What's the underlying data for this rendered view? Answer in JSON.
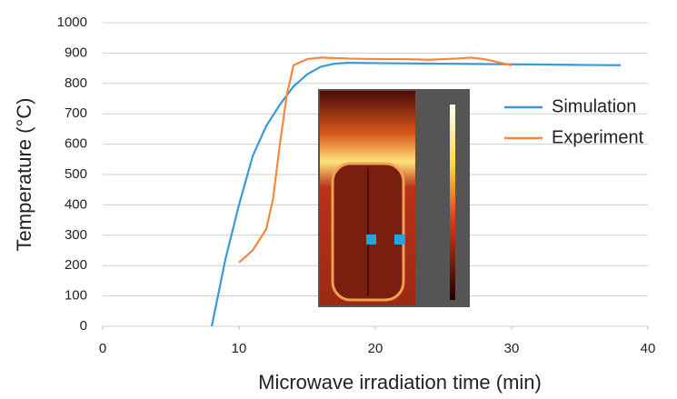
{
  "chart_data": {
    "type": "line",
    "x_label": "Microwave irradiation time (min)",
    "y_label": "Temperature (°C)",
    "xlim": [
      0,
      40
    ],
    "xticks": [
      0,
      10,
      20,
      30,
      40
    ],
    "ylim": [
      0,
      1000
    ],
    "yticks": [
      0,
      100,
      200,
      300,
      400,
      500,
      600,
      700,
      800,
      900,
      1000
    ],
    "grid": true,
    "legend": "right",
    "series": [
      {
        "name": "Simulation",
        "color": "#3a9ad9",
        "x": [
          8,
          9,
          10,
          11,
          12,
          13,
          14,
          15,
          16,
          17,
          18,
          20,
          25,
          30,
          35,
          38
        ],
        "values": [
          0,
          220,
          400,
          560,
          660,
          730,
          790,
          830,
          855,
          865,
          868,
          867,
          865,
          863,
          861,
          860
        ]
      },
      {
        "name": "Experiment",
        "color": "#f5883a",
        "x": [
          10,
          11,
          12,
          12.5,
          13,
          13.5,
          14,
          15,
          16,
          18,
          20,
          22,
          24,
          26,
          27,
          28,
          29,
          30
        ],
        "values": [
          210,
          250,
          320,
          420,
          600,
          760,
          860,
          880,
          885,
          882,
          880,
          880,
          878,
          882,
          885,
          880,
          870,
          860
        ]
      }
    ]
  }
}
